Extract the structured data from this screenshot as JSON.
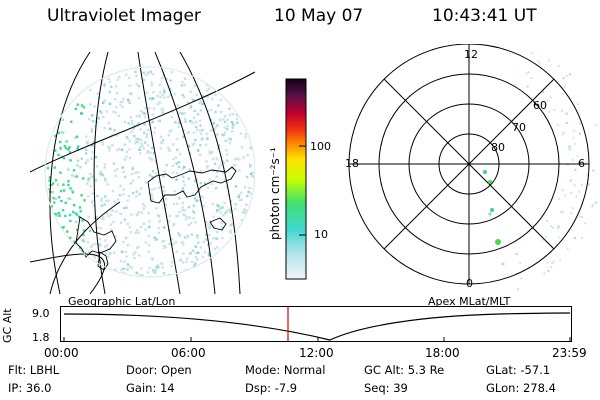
{
  "header": {
    "instrument": "Ultraviolet Imager",
    "date": "10 May 07",
    "time": "10:43:41 UT"
  },
  "colorbar": {
    "unit_label": "photon cm⁻²s⁻¹",
    "ticks": [
      "100",
      "10"
    ]
  },
  "polar_plot": {
    "lat_labels": [
      "60",
      "70",
      "80"
    ],
    "mlt_labels": {
      "top": "12",
      "left": "18",
      "right": "6",
      "bottom": "0"
    }
  },
  "panel_labels": {
    "geographic": "Geographic Lat/Lon",
    "apex": "Apex  MLat/MLT"
  },
  "altitude_plot": {
    "axis_title": "GC Alt",
    "y_ticks": [
      "9.0",
      "1.8"
    ],
    "x_ticks": [
      "00:00",
      "06:00",
      "12:00",
      "18:00",
      "23:59"
    ],
    "current_time_marker": "10:43"
  },
  "info": {
    "flt": "Flt: LBHL",
    "door": "Door: Open",
    "mode": "Mode: Normal",
    "gc_alt": "GC Alt: 5.3 Re",
    "glat": "GLat: -57.1",
    "ip": "IP: 36.0",
    "gain": "Gain: 14",
    "dsp": "Dsp:    -7.9",
    "seq": "Seq: 39",
    "glon": "GLon: 278.4"
  },
  "colors": {
    "accent_marker": "#e00000",
    "emission_low": "#b0dde6",
    "emission_mid": "#40d090",
    "emission_high": "#40e040"
  }
}
